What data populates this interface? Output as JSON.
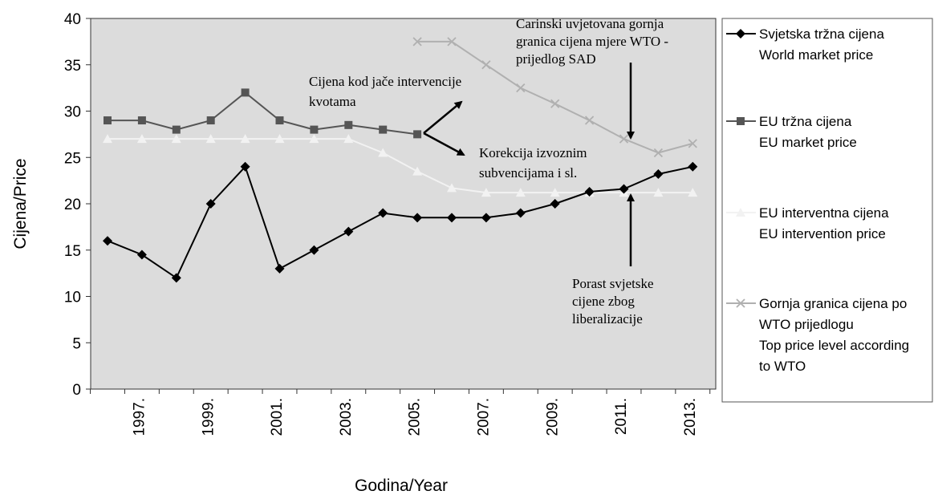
{
  "chart_data": {
    "type": "line",
    "xlabel": "Godina/Year",
    "ylabel": "Cijena/Price",
    "ylim": [
      0,
      40
    ],
    "yticks": [
      0,
      5,
      10,
      15,
      20,
      25,
      30,
      35,
      40
    ],
    "x_tick_labels": [
      "1997.",
      "1999.",
      "2001.",
      "2003.",
      "2005.",
      "2007.",
      "2009.",
      "2011.",
      "2013."
    ],
    "x": [
      1996,
      1997,
      1998,
      1999,
      2000,
      2001,
      2002,
      2003,
      2004,
      2005,
      2006,
      2007,
      2008,
      2009,
      2010,
      2011,
      2012,
      2013
    ],
    "grid": false,
    "plot_background": "#dcdcdc",
    "legend_position": "right",
    "series": [
      {
        "name_lines": [
          "Svjetska tržna cijena",
          "World market price"
        ],
        "color": "#000000",
        "marker": "diamond",
        "values": [
          16,
          14.5,
          12,
          20,
          24,
          13,
          15,
          17,
          19,
          18.5,
          18.5,
          18.5,
          19,
          20,
          21.3,
          21.6,
          23.2,
          24
        ]
      },
      {
        "name_lines": [
          "EU tržna cijena",
          " EU market price"
        ],
        "color": "#555555",
        "marker": "square",
        "values": [
          29,
          29,
          28,
          29,
          32,
          29,
          28,
          28.5,
          28,
          27.5,
          null,
          null,
          null,
          null,
          null,
          null,
          null,
          null
        ]
      },
      {
        "name_lines": [
          "EU interventna cijena",
          "EU intervention price"
        ],
        "color": "#f2f2f2",
        "marker": "triangle",
        "values": [
          27,
          27,
          27,
          27,
          27,
          27,
          27,
          27,
          25.5,
          23.5,
          21.7,
          21.2,
          21.2,
          21.2,
          21.2,
          21.2,
          21.2,
          21.2
        ]
      },
      {
        "name_lines": [
          "Gornja granica cijena po",
          "WTO prijedlogu",
          " Top price level according",
          " to WTO"
        ],
        "color": "#b0b0b0",
        "marker": "x",
        "values": [
          null,
          null,
          null,
          null,
          null,
          null,
          null,
          null,
          null,
          37.5,
          37.5,
          35,
          32.5,
          30.8,
          29,
          27,
          25.5,
          26.5
        ]
      }
    ],
    "annotations": [
      {
        "lines": [
          "Carinski uvjetovana gornja",
          "granica cijena mjere WTO -",
          "prijedlog SAD"
        ]
      },
      {
        "lines": [
          "Cijena kod jače intervencije",
          "kvotama"
        ]
      },
      {
        "lines": [
          "Korekcija izvoznim",
          "subvencijama i sl."
        ]
      },
      {
        "lines": [
          "Porast svjetske",
          "cijene zbog",
          "liberalizacije"
        ]
      }
    ]
  }
}
